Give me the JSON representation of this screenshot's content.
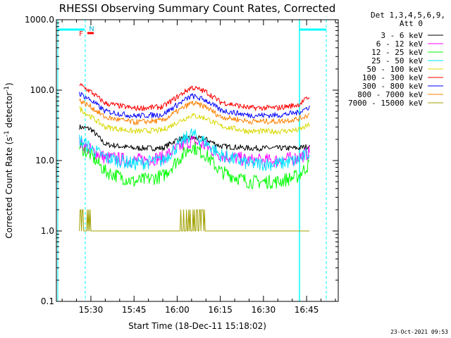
{
  "chart_data": {
    "type": "line",
    "title": "RHESSI Observing Summary Count Rates, Corrected",
    "xlabel": "Start Time (18-Dec-11 15:18:02)",
    "ylabel": "Corrected Count Rate (s",
    "ylabel_sup": "-1",
    "ylabel_tail": " detector",
    "ylabel_end": ")",
    "yscale": "log",
    "ylim": [
      0.1,
      1000
    ],
    "xlim": [
      "15:18",
      "16:56"
    ],
    "x_ticks": [
      "15:30",
      "15:45",
      "16:00",
      "16:15",
      "16:30",
      "16:45"
    ],
    "y_ticks": [
      "0.1",
      "1.0",
      "10.0",
      "100.0",
      "1000.0"
    ],
    "legend_header": [
      "Det 1,3,4,5,6,9,",
      "Att 0"
    ],
    "flags": {
      "F": "F",
      "N": "N"
    },
    "timestamp": "23-Oct-2021 09:53",
    "colors": {
      "cyan": "#00ffff",
      "red": "#ff0000",
      "black": "#000000",
      "magenta": "#ff00ff",
      "green": "#00ff00",
      "light_cyan": "#00e5ff",
      "yellow": "#d8d800",
      "dark_orange": "#ff8000",
      "blue": "#0000ff",
      "olive": "#a0a000"
    },
    "sample_times": [
      "15:26",
      "15:30",
      "15:35",
      "15:45",
      "15:55",
      "16:00",
      "16:05",
      "16:10",
      "16:15",
      "16:25",
      "16:35",
      "16:42",
      "16:46"
    ],
    "series": [
      {
        "name": "3 - 6 keV",
        "color": "#000000",
        "values": [
          30,
          28,
          17,
          15,
          15,
          20,
          21,
          20,
          16,
          15,
          15,
          15,
          16
        ]
      },
      {
        "name": "6 - 12 keV",
        "color": "#ff00ff",
        "values": [
          18,
          14,
          11,
          10,
          11,
          15,
          19,
          16,
          12,
          10,
          10,
          11,
          13
        ]
      },
      {
        "name": "12 - 25 keV",
        "color": "#00ff00",
        "values": [
          16,
          12,
          7,
          5,
          6,
          10,
          16,
          12,
          7,
          5,
          5,
          6,
          9
        ]
      },
      {
        "name": "25 - 50 keV",
        "color": "#00e5ff",
        "values": [
          20,
          15,
          11,
          9,
          10,
          16,
          24,
          18,
          12,
          9,
          9,
          10,
          13
        ]
      },
      {
        "name": "50 - 100 keV",
        "color": "#d8d800",
        "values": [
          55,
          42,
          30,
          26,
          27,
          35,
          44,
          40,
          31,
          26,
          26,
          27,
          32
        ]
      },
      {
        "name": "100 - 300 keV",
        "color": "#ff0000",
        "values": [
          120,
          95,
          65,
          55,
          58,
          80,
          110,
          95,
          68,
          56,
          56,
          62,
          80
        ]
      },
      {
        "name": "300 - 800 keV",
        "color": "#0000ff",
        "values": [
          90,
          72,
          50,
          43,
          45,
          62,
          83,
          72,
          52,
          44,
          44,
          48,
          58
        ]
      },
      {
        "name": "800 - 7000 keV",
        "color": "#ff8000",
        "values": [
          72,
          58,
          41,
          35,
          37,
          50,
          66,
          58,
          42,
          36,
          36,
          39,
          45
        ]
      },
      {
        "name": "7000 - 15000 keV",
        "color": "#a0a000",
        "values": [
          1.7,
          1.4,
          1.0,
          1.0,
          1.0,
          1.2,
          1.8,
          1.3,
          1.0,
          1.0,
          1.0,
          1.0,
          1.0
        ]
      }
    ]
  }
}
